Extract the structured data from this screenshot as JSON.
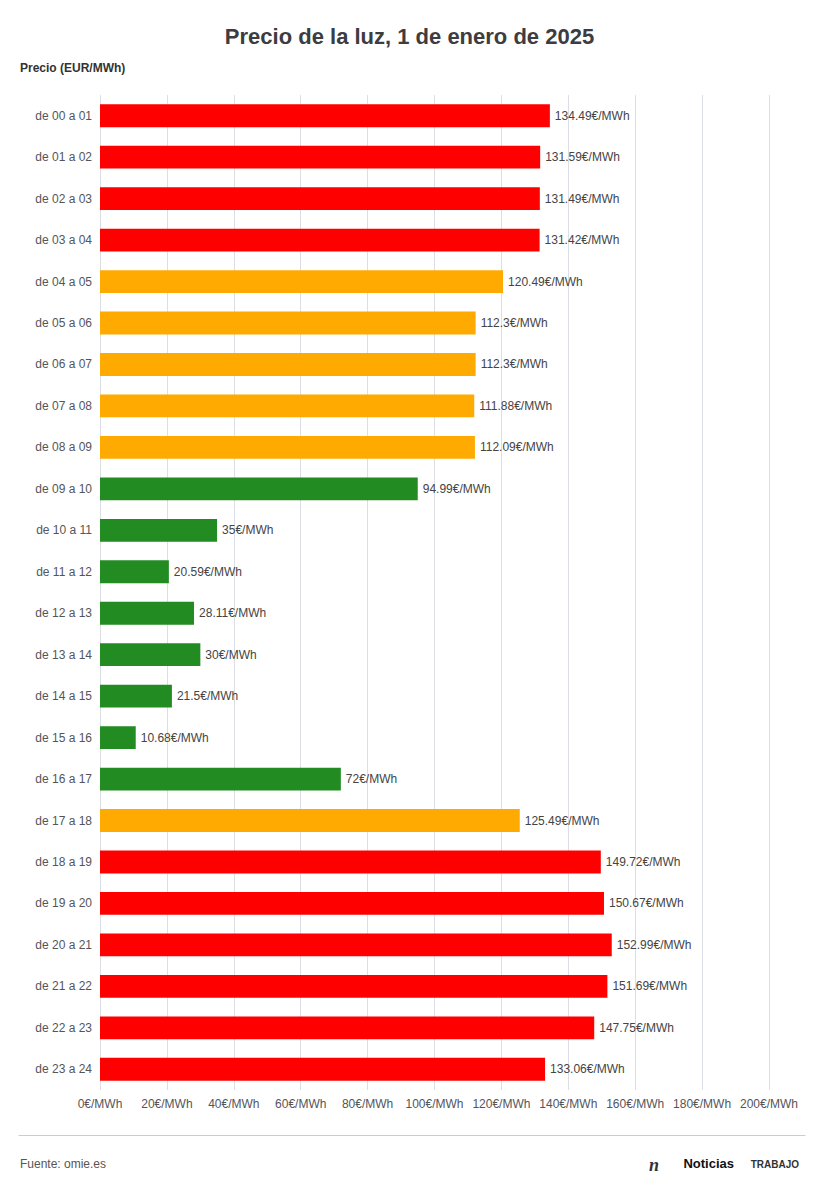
{
  "chart_data": {
    "type": "bar",
    "orientation": "horizontal",
    "title": "Precio de la luz, 1 de enero de 2025",
    "ylabel": "Precio (EUR/MWh)",
    "annotations": [
      "Fuente: omie.es",
      "n",
      "Noticias",
      "TRABAJO"
    ],
    "categories": [
      "de 00 a 01",
      "de 01 a 02",
      "de 02 a 03",
      "de 03 a 04",
      "de 04 a 05",
      "de 05 a 06",
      "de 06 a 07",
      "de 07 a 08",
      "de 08 a 09",
      "de 09 a 10",
      "de 10 a 11",
      "de 11 a 12",
      "de 12 a 13",
      "de 13 a 14",
      "de 14 a 15",
      "de 15 a 16",
      "de 16 a 17",
      "de 17 a 18",
      "de 18 a 19",
      "de 19 a 20",
      "de 20 a 21",
      "de 21 a 22",
      "de 22 a 23",
      "de 23 a 24"
    ],
    "values": [
      134.49,
      131.59,
      131.49,
      131.42,
      120.49,
      112.3,
      112.3,
      111.88,
      112.09,
      94.99,
      35.0,
      20.59,
      28.11,
      30.0,
      21.5,
      10.68,
      72.0,
      125.49,
      149.72,
      150.67,
      152.99,
      151.69,
      147.75,
      133.06
    ],
    "value_labels": [
      "134.49€/MWh",
      "131.59€/MWh",
      "131.49€/MWh",
      "131.42€/MWh",
      "120.49€/MWh",
      "112.3€/MWh",
      "112.3€/MWh",
      "111.88€/MWh",
      "112.09€/MWh",
      "94.99€/MWh",
      "35€/MWh",
      "20.59€/MWh",
      "28.11€/MWh",
      "30€/MWh",
      "21.5€/MWh",
      "10.68€/MWh",
      "72€/MWh",
      "125.49€/MWh",
      "149.72€/MWh",
      "150.67€/MWh",
      "152.99€/MWh",
      "151.69€/MWh",
      "147.75€/MWh",
      "133.06€/MWh"
    ],
    "data_labels": true,
    "colors": [
      "#ff0000",
      "#ff0000",
      "#ff0000",
      "#ff0000",
      "#ffaa00",
      "#ffaa00",
      "#ffaa00",
      "#ffaa00",
      "#ffaa00",
      "#228b22",
      "#228b22",
      "#228b22",
      "#228b22",
      "#228b22",
      "#228b22",
      "#228b22",
      "#228b22",
      "#ffaa00",
      "#ff0000",
      "#ff0000",
      "#ff0000",
      "#ff0000",
      "#ff0000",
      "#ff0000"
    ],
    "xlim": [
      0,
      200
    ],
    "xticks": [
      {
        "value": 0,
        "label": "0€/MWh"
      },
      {
        "value": 20,
        "label": "20€/MWh"
      },
      {
        "value": 40,
        "label": "40€/MWh"
      },
      {
        "value": 60,
        "label": "60€/MWh"
      },
      {
        "value": 80,
        "label": "80€/MWh"
      },
      {
        "value": 100,
        "label": "100€/MWh"
      },
      {
        "value": 120,
        "label": "120€/MWh"
      },
      {
        "value": 140,
        "label": "140€/MWh"
      },
      {
        "value": 160,
        "label": "160€/MWh"
      },
      {
        "value": 180,
        "label": "180€/MWh"
      },
      {
        "value": 200,
        "label": "200€/MWh"
      }
    ],
    "grid": true
  }
}
